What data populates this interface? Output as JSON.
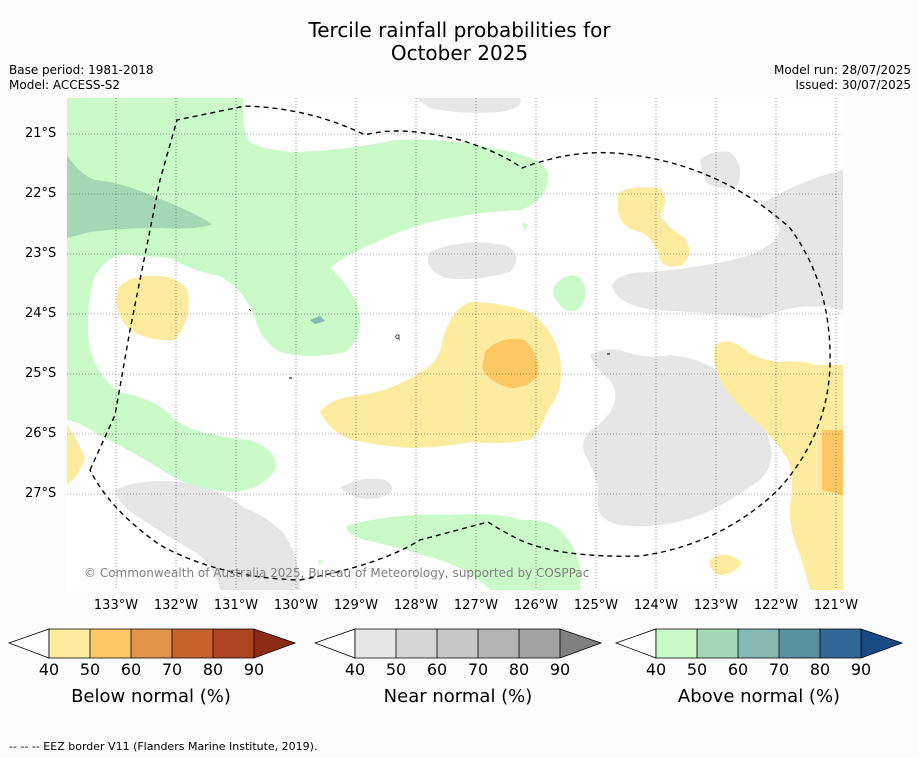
{
  "title_line1": "Tercile rainfall probabilities for",
  "title_line2": "October 2025",
  "base_period": "Base period: 1981-2018",
  "model": "Model: ACCESS-S2",
  "model_run": "Model run: 28/07/2025",
  "issued": "Issued: 30/07/2025",
  "lat_labels": [
    "21°S",
    "22°S",
    "23°S",
    "24°S",
    "25°S",
    "26°S",
    "27°S"
  ],
  "lon_labels": [
    "133°W",
    "132°W",
    "131°W",
    "130°W",
    "129°W",
    "128°W",
    "127°W",
    "126°W",
    "125°W",
    "124°W",
    "123°W",
    "122°W",
    "121°W"
  ],
  "copyright": "© Commonwealth of Australia 2025, Bureau of Meteorology, supported by COSPPac",
  "colorbars": [
    {
      "title": "Below normal (%)",
      "ticks": [
        "40",
        "50",
        "60",
        "70",
        "80",
        "90"
      ],
      "colors": [
        "#fdeca0",
        "#fdc864",
        "#e0954a",
        "#c9622e",
        "#ad4422",
        "#8e2b14"
      ]
    },
    {
      "title": "Near normal (%)",
      "ticks": [
        "40",
        "50",
        "60",
        "70",
        "80",
        "90"
      ],
      "colors": [
        "#e6e6e6",
        "#d4d4d4",
        "#c6c6c6",
        "#b4b4b4",
        "#a2a2a2",
        "#808080"
      ]
    },
    {
      "title": "Above normal (%)",
      "ticks": [
        "40",
        "50",
        "60",
        "70",
        "80",
        "90"
      ],
      "colors": [
        "#c9fac8",
        "#a4d8b4",
        "#86b8b2",
        "#5a91a0",
        "#326898",
        "#1a4a84"
      ]
    }
  ],
  "footnote": "--  --  -- EEZ border V11 (Flanders Marine Institute, 2019)."
}
